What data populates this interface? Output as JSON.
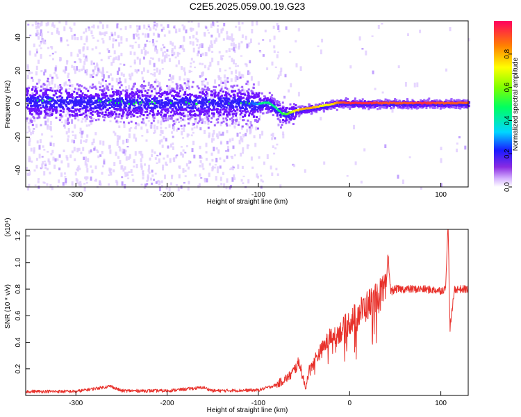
{
  "title": "C2E5.2025.059.00.19.G23",
  "colors": {
    "snr_line": "#e8302a",
    "spectrogram_low": "#c9b0ff",
    "spectrogram_mid": "#6f13ff",
    "spectrogram_core": "#2222ee"
  },
  "chart_data": [
    {
      "type": "heatmap",
      "title": "C2E5.2025.059.00.19.G23",
      "xlabel": "Height of straight line (km)",
      "ylabel": "Frequency (Hz)",
      "xlim": [
        -355,
        130
      ],
      "ylim": [
        -50,
        50
      ],
      "xticks": [
        -300,
        -200,
        -100,
        0,
        100
      ],
      "yticks": [
        -40,
        -20,
        0,
        20,
        40
      ],
      "colorbar": {
        "label": "Normalized spectral amplitude",
        "range": [
          0,
          1
        ],
        "ticks": [
          0.0,
          0.2,
          0.4,
          0.6,
          0.8
        ],
        "colormap": "rainbow (white-violet-blue-cyan-green-yellow-red)"
      },
      "ridge": {
        "x": [
          -355,
          -300,
          -200,
          -130,
          -110,
          -100,
          -90,
          -80,
          -75,
          -70,
          -60,
          -50,
          -40,
          -30,
          -20,
          -10,
          0,
          20,
          40,
          60,
          80,
          100,
          130
        ],
        "frequency": [
          2,
          1,
          1,
          1,
          0,
          0,
          1,
          -3,
          -6,
          -6,
          -4,
          -3,
          -2,
          -1,
          0,
          1,
          0.5,
          0.5,
          0.5,
          0.5,
          0.5,
          0.5,
          0.5
        ],
        "amplitude": [
          0.35,
          0.35,
          0.35,
          0.35,
          0.4,
          0.45,
          0.45,
          0.45,
          0.5,
          0.55,
          0.75,
          0.8,
          0.8,
          0.7,
          0.75,
          0.9,
          0.95,
          0.95,
          0.9,
          0.9,
          0.95,
          0.9,
          0.9
        ]
      }
    },
    {
      "type": "line",
      "xlabel": "Height of straight line (km)",
      "ylabel": "SNR (10 * v/v)",
      "yscale_label": "(x10⁴)",
      "xlim": [
        -355,
        130
      ],
      "ylim": [
        0,
        1.25
      ],
      "xticks": [
        -300,
        -200,
        -100,
        0,
        100
      ],
      "yticks": [
        0.2,
        0.4,
        0.6,
        0.8,
        1.0,
        1.2
      ],
      "series": [
        {
          "x": [
            -355,
            -300,
            -262,
            -250,
            -200,
            -160,
            -150,
            -100,
            -80,
            -65,
            -55,
            -50,
            -48,
            -45,
            -40,
            -30,
            -20,
            -10,
            0,
            10,
            20,
            30,
            35,
            40,
            42,
            45,
            50,
            60,
            80,
            100,
            105,
            108,
            110,
            115,
            130
          ],
          "values": [
            0.03,
            0.03,
            0.07,
            0.035,
            0.035,
            0.06,
            0.035,
            0.04,
            0.08,
            0.15,
            0.25,
            0.1,
            0.06,
            0.18,
            0.25,
            0.35,
            0.45,
            0.48,
            0.55,
            0.62,
            0.68,
            0.74,
            0.76,
            0.78,
            1.08,
            0.78,
            0.8,
            0.8,
            0.8,
            0.79,
            0.8,
            1.3,
            0.5,
            0.8,
            0.8
          ]
        }
      ]
    }
  ]
}
